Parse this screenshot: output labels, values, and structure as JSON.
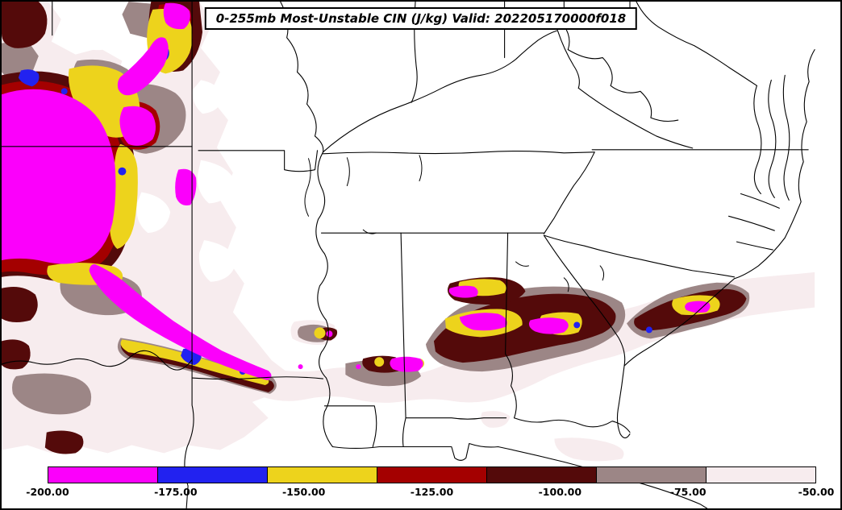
{
  "title_bar": {
    "text": "0-255mb Most-Unstable CIN (J/kg) Valid: 202205170000f018"
  },
  "palette": {
    "magenta": "#FB00FB",
    "blue": "#2222F0",
    "yellow": "#EDD31C",
    "red": "#A40000",
    "dark_maroon": "#540A0A",
    "gray": "#9C8686",
    "pale": "#F7ECEE",
    "outline": "#000000",
    "background": "#FFFFFF"
  },
  "colorbar": {
    "labels": [
      "-200.00",
      "-175.00",
      "-150.00",
      "-125.00",
      "-100.00",
      "-75.00",
      "-50.00"
    ],
    "segments": [
      {
        "name": "magenta",
        "hex": "#FB00FB"
      },
      {
        "name": "blue",
        "hex": "#2222F0"
      },
      {
        "name": "yellow",
        "hex": "#EDD31C"
      },
      {
        "name": "red",
        "hex": "#A40000"
      },
      {
        "name": "dark-maroon",
        "hex": "#540A0A"
      },
      {
        "name": "rosy-gray",
        "hex": "#9C8686"
      },
      {
        "name": "pale-pink",
        "hex": "#F7ECEE"
      }
    ]
  },
  "chart_data": {
    "type": "heatmap",
    "title": "0-255mb Most-Unstable CIN (J/kg)",
    "valid_time": "202205170000f018",
    "units": "J/kg",
    "colorbar_levels": [
      -200.0,
      -175.0,
      -150.0,
      -125.0,
      -100.0,
      -75.0,
      -50.0
    ],
    "colorbar_colors": [
      "#FB00FB",
      "#2222F0",
      "#EDD31C",
      "#A40000",
      "#540A0A",
      "#9C8686",
      "#F7ECEE"
    ],
    "colorbar_orientation": "horizontal",
    "legend_position": "bottom",
    "region_shown": "South-central and southeastern United States with state boundaries and Atlantic/Gulf coastlines",
    "field_description": "Filled contours of most-unstable CIN: strongest values (magenta core ringed by red, yellow, blue) over the southern Plains at left, and a broken band of enhanced CIN (dark maroon/magenta with yellow rings and gray/pale fringes) stretching across Mississippi, Alabama, Georgia and coastal South Carolina"
  }
}
